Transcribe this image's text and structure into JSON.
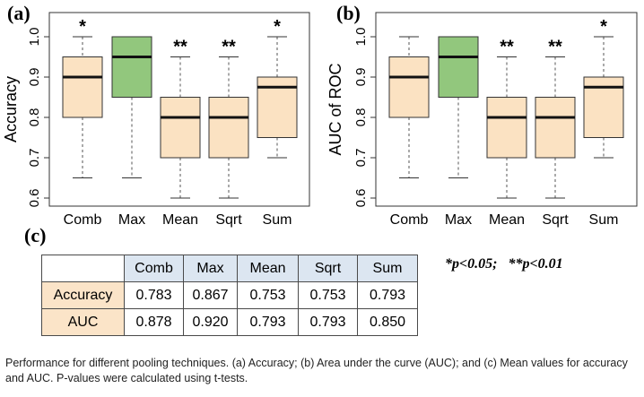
{
  "panels": {
    "a": "(a)",
    "b": "(b)",
    "c": "(c)"
  },
  "chart_data": [
    {
      "type": "box",
      "panel": "(a)",
      "ylabel": "Accuracy",
      "ylim": [
        0.58,
        1.06
      ],
      "yticks": [
        "0.6",
        "0.7",
        "0.8",
        "0.9",
        "1.0"
      ],
      "categories": [
        "Comb",
        "Max",
        "Mean",
        "Sqrt",
        "Sum"
      ],
      "boxes": [
        {
          "min": 0.65,
          "q1": 0.8,
          "median": 0.9,
          "q3": 0.95,
          "max": 1.0,
          "sig": "*",
          "color": "#fbe2c2"
        },
        {
          "min": 0.65,
          "q1": 0.85,
          "median": 0.95,
          "q3": 1.0,
          "max": 1.0,
          "sig": "",
          "color": "#92c77d"
        },
        {
          "min": 0.6,
          "q1": 0.7,
          "median": 0.8,
          "q3": 0.85,
          "max": 0.95,
          "sig": "**",
          "color": "#fbe2c2"
        },
        {
          "min": 0.6,
          "q1": 0.7,
          "median": 0.8,
          "q3": 0.85,
          "max": 0.95,
          "sig": "**",
          "color": "#fbe2c2"
        },
        {
          "min": 0.7,
          "q1": 0.75,
          "median": 0.875,
          "q3": 0.9,
          "max": 1.0,
          "sig": "*",
          "color": "#fbe2c2"
        }
      ]
    },
    {
      "type": "box",
      "panel": "(b)",
      "ylabel": "AUC of ROC",
      "ylim": [
        0.58,
        1.06
      ],
      "yticks": [
        "0.6",
        "0.7",
        "0.8",
        "0.9",
        "1.0"
      ],
      "categories": [
        "Comb",
        "Max",
        "Mean",
        "Sqrt",
        "Sum"
      ],
      "boxes": [
        {
          "min": 0.65,
          "q1": 0.8,
          "median": 0.9,
          "q3": 0.95,
          "max": 1.0,
          "sig": "",
          "color": "#fbe2c2"
        },
        {
          "min": 0.65,
          "q1": 0.85,
          "median": 0.95,
          "q3": 1.0,
          "max": 1.0,
          "sig": "",
          "color": "#92c77d"
        },
        {
          "min": 0.6,
          "q1": 0.7,
          "median": 0.8,
          "q3": 0.85,
          "max": 0.95,
          "sig": "**",
          "color": "#fbe2c2"
        },
        {
          "min": 0.6,
          "q1": 0.7,
          "median": 0.8,
          "q3": 0.85,
          "max": 0.95,
          "sig": "**",
          "color": "#fbe2c2"
        },
        {
          "min": 0.7,
          "q1": 0.75,
          "median": 0.875,
          "q3": 0.9,
          "max": 1.0,
          "sig": "*",
          "color": "#fbe2c2"
        }
      ]
    },
    {
      "type": "table",
      "panel": "(c)",
      "columns": [
        "Comb",
        "Max",
        "Mean",
        "Sqrt",
        "Sum"
      ],
      "rows": [
        {
          "label": "Accuracy",
          "values": [
            "0.783",
            "0.867",
            "0.753",
            "0.753",
            "0.793"
          ]
        },
        {
          "label": "AUC",
          "values": [
            "0.878",
            "0.920",
            "0.793",
            "0.793",
            "0.850"
          ]
        }
      ]
    }
  ],
  "note": "*p<0.05;   **p<0.01",
  "caption": "Performance for different pooling techniques. (a) Accuracy; (b) Area under the curve (AUC); and (c) Mean values for accuracy and AUC. P-values were calculated using t-tests."
}
